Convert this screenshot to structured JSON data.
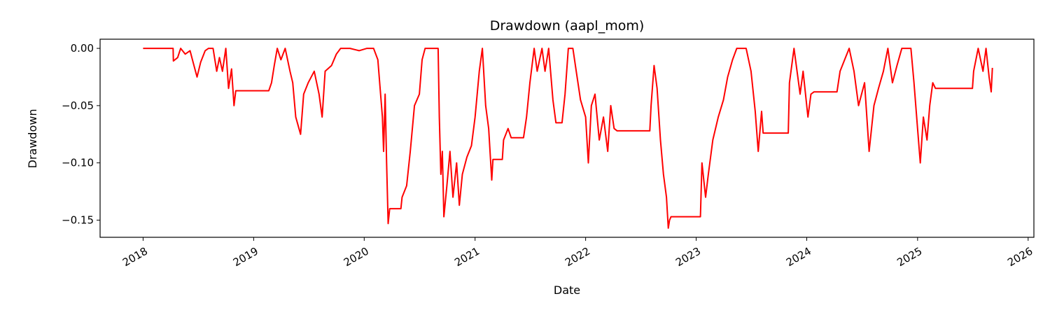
{
  "chart_data": {
    "type": "line",
    "title": "Drawdown (aapl_mom)",
    "xlabel": "Date",
    "ylabel": "Drawdown",
    "xlim": [
      "2017-08-12",
      "2026-01-20"
    ],
    "ylim": [
      -0.165,
      0.008
    ],
    "x_ticks": [
      "2018-01-01",
      "2019-01-01",
      "2020-01-01",
      "2021-01-01",
      "2022-01-01",
      "2023-01-01",
      "2024-01-01",
      "2025-01-01",
      "2026-01-01"
    ],
    "x_tick_labels": [
      "2018",
      "2019",
      "2020",
      "2021",
      "2022",
      "2023",
      "2024",
      "2025",
      "2026"
    ],
    "y_ticks": [
      0.0,
      -0.05,
      -0.1,
      -0.15
    ],
    "y_tick_labels": [
      "0.00",
      "−0.05",
      "−0.10",
      "−0.15"
    ],
    "grid": false,
    "line_color": "#ff0000",
    "series": [
      {
        "points": [
          [
            "2018-01-01",
            0
          ],
          [
            "2018-04-10",
            0
          ],
          [
            "2018-04-11",
            -0.011
          ],
          [
            "2018-04-25",
            -0.008
          ],
          [
            "2018-05-05",
            0
          ],
          [
            "2018-05-20",
            -0.005
          ],
          [
            "2018-06-05",
            -0.002
          ],
          [
            "2018-06-15",
            -0.012
          ],
          [
            "2018-06-28",
            -0.025
          ],
          [
            "2018-07-10",
            -0.012
          ],
          [
            "2018-07-25",
            -0.002
          ],
          [
            "2018-08-05",
            0
          ],
          [
            "2018-08-20",
            0
          ],
          [
            "2018-09-01",
            -0.02
          ],
          [
            "2018-09-10",
            -0.008
          ],
          [
            "2018-09-20",
            -0.02
          ],
          [
            "2018-10-01",
            0
          ],
          [
            "2018-10-10",
            -0.035
          ],
          [
            "2018-10-20",
            -0.018
          ],
          [
            "2018-10-28",
            -0.05
          ],
          [
            "2018-11-03",
            -0.037
          ],
          [
            "2019-02-20",
            -0.037
          ],
          [
            "2019-03-01",
            -0.03
          ],
          [
            "2019-03-10",
            -0.015
          ],
          [
            "2019-03-20",
            0
          ],
          [
            "2019-04-01",
            -0.01
          ],
          [
            "2019-04-15",
            0
          ],
          [
            "2019-05-01",
            -0.02
          ],
          [
            "2019-05-10",
            -0.03
          ],
          [
            "2019-05-20",
            -0.06
          ],
          [
            "2019-06-05",
            -0.075
          ],
          [
            "2019-06-15",
            -0.04
          ],
          [
            "2019-06-30",
            -0.03
          ],
          [
            "2019-07-20",
            -0.02
          ],
          [
            "2019-08-05",
            -0.04
          ],
          [
            "2019-08-15",
            -0.06
          ],
          [
            "2019-08-25",
            -0.02
          ],
          [
            "2019-09-15",
            -0.015
          ],
          [
            "2019-10-01",
            -0.005
          ],
          [
            "2019-10-15",
            0
          ],
          [
            "2019-11-15",
            0
          ],
          [
            "2019-12-15",
            -0.002
          ],
          [
            "2020-01-10",
            0
          ],
          [
            "2020-02-01",
            0
          ],
          [
            "2020-02-15",
            -0.01
          ],
          [
            "2020-02-24",
            -0.04
          ],
          [
            "2020-03-01",
            -0.06
          ],
          [
            "2020-03-05",
            -0.09
          ],
          [
            "2020-03-10",
            -0.04
          ],
          [
            "2020-03-15",
            -0.1
          ],
          [
            "2020-03-20",
            -0.153
          ],
          [
            "2020-03-25",
            -0.14
          ],
          [
            "2020-05-01",
            -0.14
          ],
          [
            "2020-05-05",
            -0.13
          ],
          [
            "2020-05-20",
            -0.12
          ],
          [
            "2020-06-01",
            -0.09
          ],
          [
            "2020-06-15",
            -0.05
          ],
          [
            "2020-07-01",
            -0.04
          ],
          [
            "2020-07-10",
            -0.01
          ],
          [
            "2020-07-20",
            0
          ],
          [
            "2020-08-15",
            0
          ],
          [
            "2020-09-01",
            0
          ],
          [
            "2020-09-05",
            -0.06
          ],
          [
            "2020-09-10",
            -0.11
          ],
          [
            "2020-09-15",
            -0.09
          ],
          [
            "2020-09-20",
            -0.147
          ],
          [
            "2020-09-30",
            -0.12
          ],
          [
            "2020-10-10",
            -0.09
          ],
          [
            "2020-10-20",
            -0.13
          ],
          [
            "2020-11-01",
            -0.1
          ],
          [
            "2020-11-10",
            -0.137
          ],
          [
            "2020-11-20",
            -0.11
          ],
          [
            "2020-12-05",
            -0.095
          ],
          [
            "2020-12-20",
            -0.085
          ],
          [
            "2021-01-01",
            -0.06
          ],
          [
            "2021-01-15",
            -0.02
          ],
          [
            "2021-01-25",
            0
          ],
          [
            "2021-02-05",
            -0.05
          ],
          [
            "2021-02-15",
            -0.07
          ],
          [
            "2021-02-25",
            -0.115
          ],
          [
            "2021-03-01",
            -0.097
          ],
          [
            "2021-04-01",
            -0.097
          ],
          [
            "2021-04-05",
            -0.08
          ],
          [
            "2021-04-20",
            -0.07
          ],
          [
            "2021-04-30",
            -0.078
          ],
          [
            "2021-06-10",
            -0.078
          ],
          [
            "2021-06-20",
            -0.06
          ],
          [
            "2021-07-01",
            -0.03
          ],
          [
            "2021-07-15",
            0
          ],
          [
            "2021-07-25",
            -0.02
          ],
          [
            "2021-08-10",
            0
          ],
          [
            "2021-08-20",
            -0.02
          ],
          [
            "2021-09-01",
            0
          ],
          [
            "2021-09-15",
            -0.045
          ],
          [
            "2021-09-25",
            -0.065
          ],
          [
            "2021-10-15",
            -0.065
          ],
          [
            "2021-10-25",
            -0.04
          ],
          [
            "2021-11-05",
            0
          ],
          [
            "2021-11-20",
            0
          ],
          [
            "2021-12-01",
            -0.02
          ],
          [
            "2021-12-15",
            -0.045
          ],
          [
            "2022-01-01",
            -0.06
          ],
          [
            "2022-01-10",
            -0.1
          ],
          [
            "2022-01-20",
            -0.05
          ],
          [
            "2022-02-01",
            -0.04
          ],
          [
            "2022-02-15",
            -0.08
          ],
          [
            "2022-03-01",
            -0.06
          ],
          [
            "2022-03-15",
            -0.09
          ],
          [
            "2022-03-25",
            -0.05
          ],
          [
            "2022-04-05",
            -0.07
          ],
          [
            "2022-04-15",
            -0.072
          ],
          [
            "2022-08-01",
            -0.072
          ],
          [
            "2022-08-05",
            -0.05
          ],
          [
            "2022-08-15",
            -0.015
          ],
          [
            "2022-08-25",
            -0.035
          ],
          [
            "2022-09-05",
            -0.08
          ],
          [
            "2022-09-15",
            -0.11
          ],
          [
            "2022-09-25",
            -0.13
          ],
          [
            "2022-10-01",
            -0.157
          ],
          [
            "2022-10-05",
            -0.15
          ],
          [
            "2022-10-10",
            -0.147
          ],
          [
            "2023-01-15",
            -0.147
          ],
          [
            "2023-01-20",
            -0.1
          ],
          [
            "2023-02-01",
            -0.13
          ],
          [
            "2023-02-10",
            -0.11
          ],
          [
            "2023-02-25",
            -0.08
          ],
          [
            "2023-03-15",
            -0.06
          ],
          [
            "2023-04-01",
            -0.045
          ],
          [
            "2023-04-15",
            -0.025
          ],
          [
            "2023-05-01",
            -0.01
          ],
          [
            "2023-05-15",
            0
          ],
          [
            "2023-06-15",
            0
          ],
          [
            "2023-07-01",
            -0.02
          ],
          [
            "2023-07-15",
            -0.055
          ],
          [
            "2023-07-25",
            -0.09
          ],
          [
            "2023-08-05",
            -0.055
          ],
          [
            "2023-08-10",
            -0.074
          ],
          [
            "2023-11-01",
            -0.074
          ],
          [
            "2023-11-05",
            -0.03
          ],
          [
            "2023-11-20",
            0
          ],
          [
            "2023-12-10",
            -0.04
          ],
          [
            "2023-12-20",
            -0.02
          ],
          [
            "2024-01-05",
            -0.06
          ],
          [
            "2024-01-15",
            -0.04
          ],
          [
            "2024-01-25",
            -0.038
          ],
          [
            "2024-04-10",
            -0.038
          ],
          [
            "2024-04-20",
            -0.02
          ],
          [
            "2024-05-05",
            -0.01
          ],
          [
            "2024-05-20",
            0
          ],
          [
            "2024-06-05",
            -0.02
          ],
          [
            "2024-06-20",
            -0.05
          ],
          [
            "2024-07-10",
            -0.03
          ],
          [
            "2024-07-25",
            -0.09
          ],
          [
            "2024-08-10",
            -0.05
          ],
          [
            "2024-08-25",
            -0.035
          ],
          [
            "2024-09-10",
            -0.02
          ],
          [
            "2024-09-25",
            0
          ],
          [
            "2024-10-10",
            -0.03
          ],
          [
            "2024-10-25",
            -0.015
          ],
          [
            "2024-11-10",
            0
          ],
          [
            "2024-12-10",
            0
          ],
          [
            "2024-12-20",
            -0.03
          ],
          [
            "2025-01-01",
            -0.07
          ],
          [
            "2025-01-10",
            -0.1
          ],
          [
            "2025-01-20",
            -0.06
          ],
          [
            "2025-02-01",
            -0.08
          ],
          [
            "2025-02-10",
            -0.05
          ],
          [
            "2025-02-20",
            -0.03
          ],
          [
            "2025-03-01",
            -0.035
          ],
          [
            "2025-07-01",
            -0.035
          ],
          [
            "2025-07-05",
            -0.02
          ],
          [
            "2025-07-20",
            0
          ],
          [
            "2025-08-05",
            -0.02
          ],
          [
            "2025-08-15",
            0
          ],
          [
            "2025-08-25",
            -0.025
          ],
          [
            "2025-09-01",
            -0.038
          ],
          [
            "2025-09-05",
            -0.017
          ]
        ]
      }
    ]
  }
}
